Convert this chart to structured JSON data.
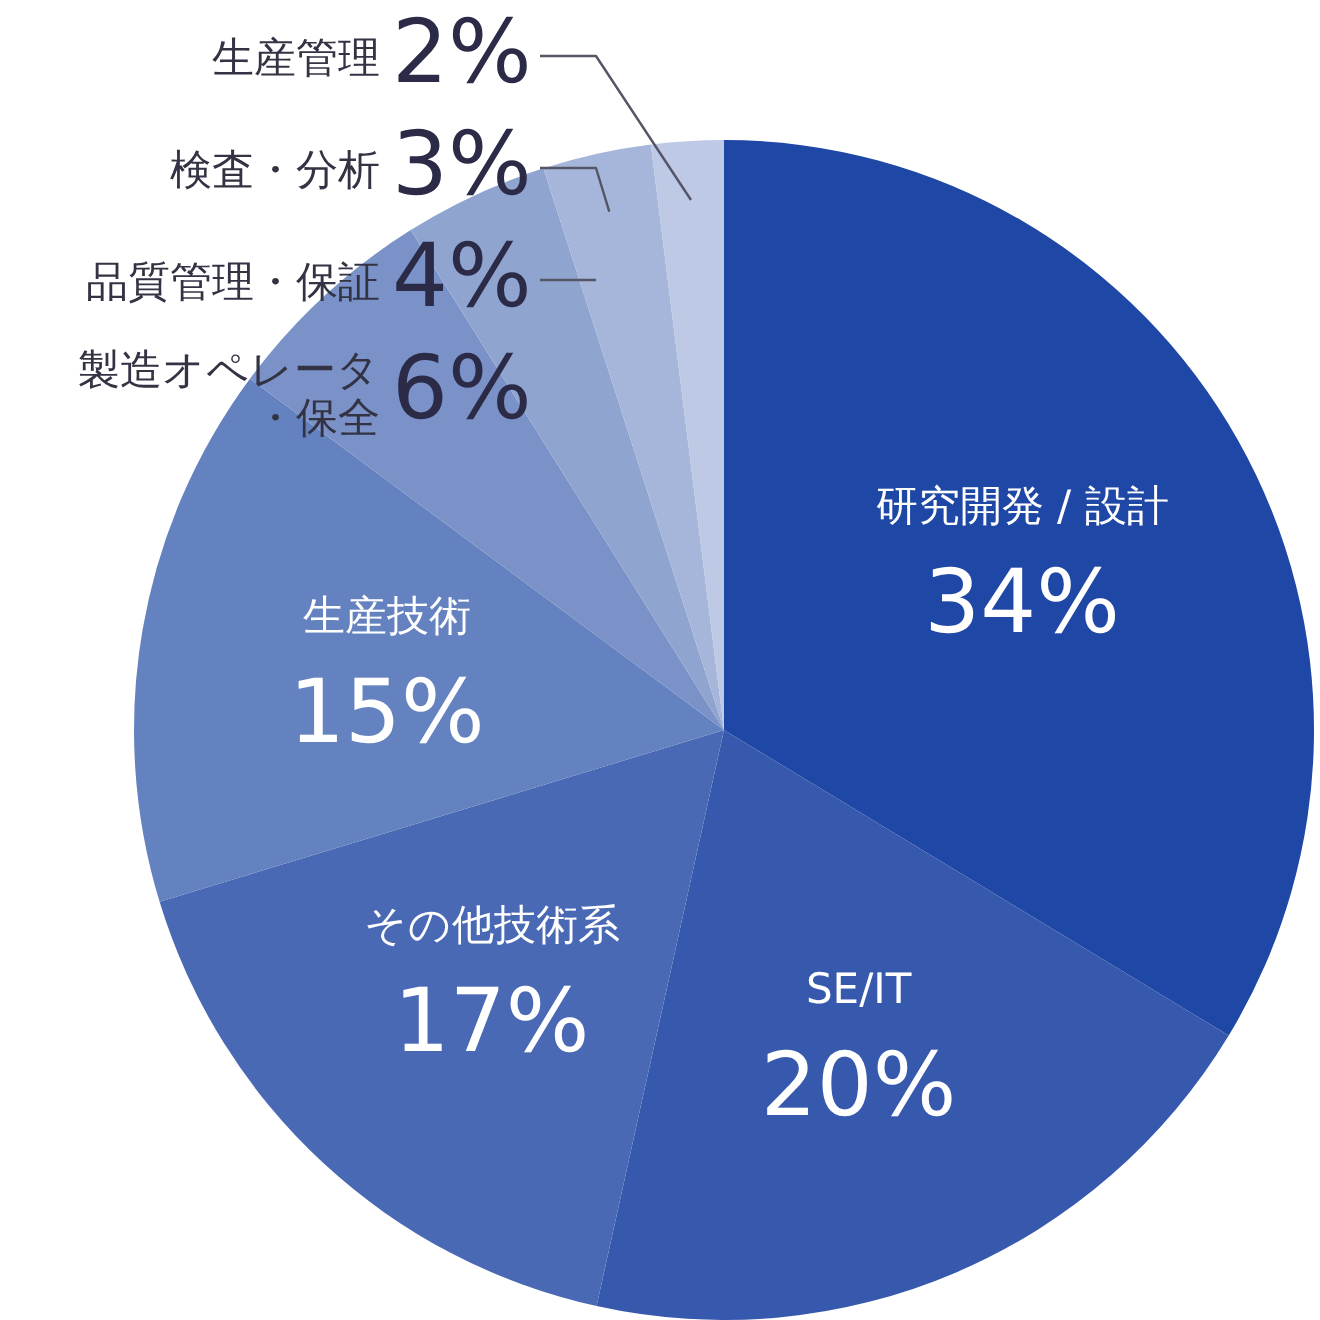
{
  "chart_data": {
    "type": "pie",
    "categories": [
      "研究開発 / 設計",
      "SE/IT",
      "その他技術系",
      "生産技術",
      "製造オペレータ・保全",
      "品質管理・保証",
      "検査・分析",
      "生産管理"
    ],
    "values": [
      34,
      20,
      17,
      15,
      6,
      4,
      3,
      2
    ],
    "colors": [
      "#1f47a5",
      "#3658ad",
      "#4a69b5",
      "#6482bf",
      "#7a92c8",
      "#90a4d0",
      "#a6b6da",
      "#bdc9e5"
    ],
    "value_labels": [
      "34%",
      "20%",
      "17%",
      "15%",
      "6%",
      "4%",
      "3%",
      "2%"
    ]
  }
}
